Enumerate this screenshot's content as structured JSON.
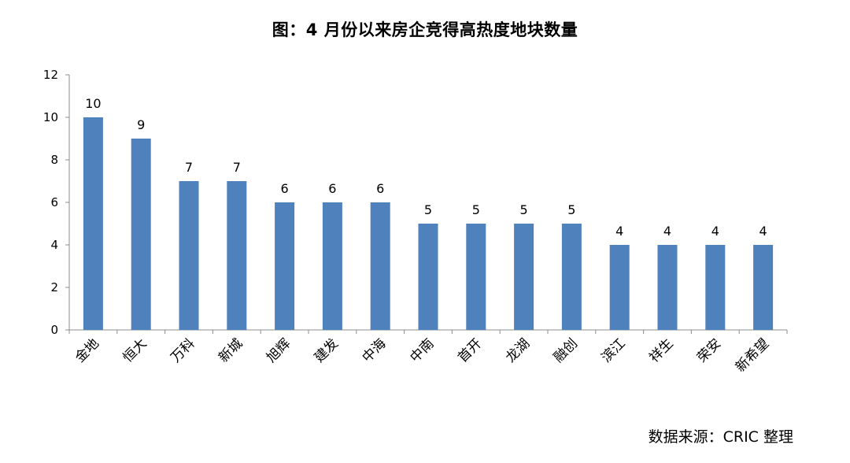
{
  "chart_data": {
    "type": "bar",
    "title": "图：4 月份以来房企竞得高热度地块数量",
    "categories": [
      "金地",
      "恒大",
      "万科",
      "新城",
      "旭辉",
      "建发",
      "中海",
      "中南",
      "首开",
      "龙湖",
      "融创",
      "滨江",
      "祥生",
      "荣安",
      "新希望"
    ],
    "values": [
      10,
      9,
      7,
      7,
      6,
      6,
      6,
      5,
      5,
      5,
      5,
      4,
      4,
      4,
      4
    ],
    "ylim": [
      0,
      12
    ],
    "yticks": [
      0,
      2,
      4,
      6,
      8,
      10,
      12
    ],
    "xlabel": "",
    "ylabel": "",
    "bar_color": "#4f81bd",
    "grid": false,
    "legend": "none",
    "data_labels": true
  },
  "source_note": "数据来源：CRIC 整理"
}
